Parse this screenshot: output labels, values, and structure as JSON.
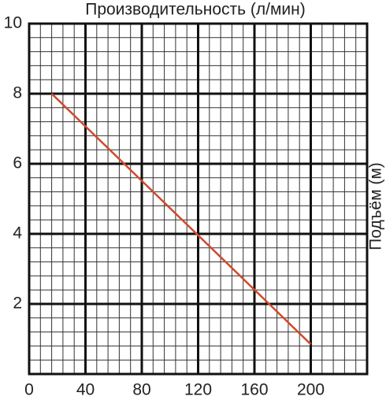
{
  "chart_data": {
    "type": "line",
    "x_label": "Производительность (л/мин)",
    "y_label": "Подъём (м)",
    "x": [
      16,
      200
    ],
    "series": [
      {
        "color": "#d04a2e",
        "values": [
          8,
          0.85
        ]
      }
    ],
    "xlim": [
      0,
      240
    ],
    "xticks": [
      0,
      40,
      80,
      120,
      160,
      200
    ],
    "ylim": [
      0,
      10
    ],
    "yticks": [
      2,
      4,
      6,
      8,
      10
    ],
    "grid": true,
    "minor_grid_divisions": 5
  }
}
